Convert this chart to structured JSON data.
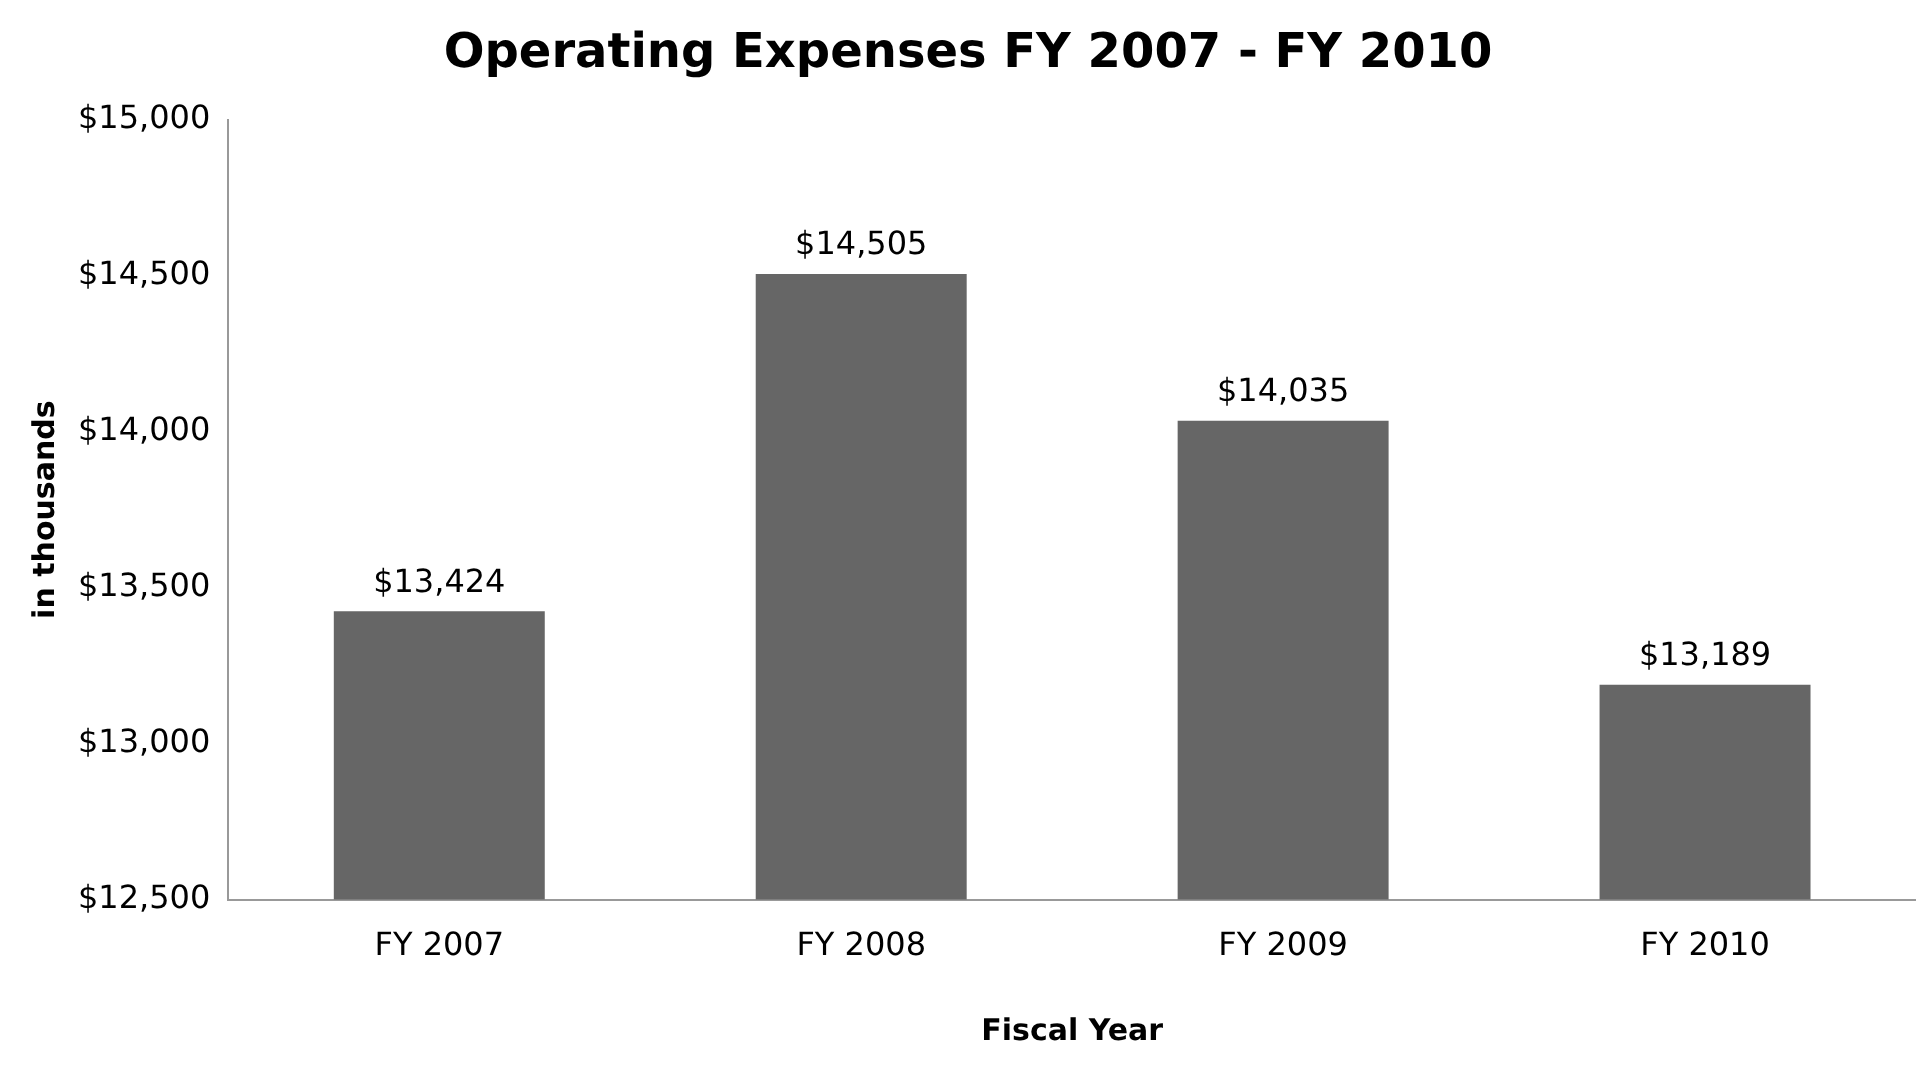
{
  "chart_data": {
    "type": "bar",
    "title": "Operating Expenses FY 2007 - FY 2010",
    "xlabel": "Fiscal Year",
    "ylabel": "in thousands",
    "categories": [
      "FY 2007",
      "FY 2008",
      "FY 2009",
      "FY 2010"
    ],
    "values": [
      13424,
      14505,
      14035,
      13189
    ],
    "value_labels": [
      "$13,424",
      "$14,505",
      "$14,035",
      "$13,189"
    ],
    "color": "#666666",
    "ylim": [
      12500,
      15000
    ],
    "yticks": [
      {
        "value": 12500,
        "label": "$12,500"
      },
      {
        "value": 13000,
        "label": "$13,000"
      },
      {
        "value": 13500,
        "label": "$13,500"
      },
      {
        "value": 14000,
        "label": "$14,000"
      },
      {
        "value": 14500,
        "label": "$14,500"
      },
      {
        "value": 15000,
        "label": "$15,000"
      }
    ],
    "grid": false,
    "legend": false
  }
}
